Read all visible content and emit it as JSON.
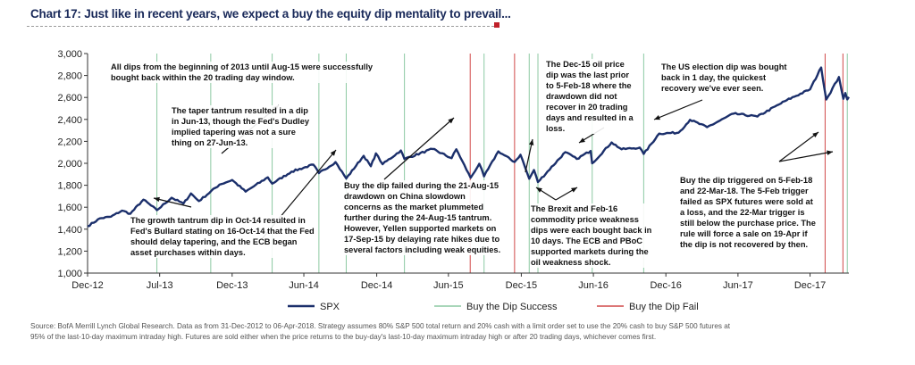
{
  "title": "Chart 17: Just like in recent years, we expect a buy the equity dip mentality to prevail...",
  "chart_data": {
    "type": "line",
    "ylim": [
      1000,
      3000
    ],
    "y_ticks": [
      "1,000",
      "1,200",
      "1,400",
      "1,600",
      "1,800",
      "2,000",
      "2,200",
      "2,400",
      "2,600",
      "2,800",
      "3,000"
    ],
    "y_tick_values": [
      1000,
      1200,
      1400,
      1600,
      1800,
      2000,
      2200,
      2400,
      2600,
      2800,
      3000
    ],
    "xlim": [
      "2012-12-31",
      "2018-04-06"
    ],
    "x_ticks": [
      "Dec-12",
      "Jul-13",
      "Dec-13",
      "Jun-14",
      "Dec-14",
      "Jun-15",
      "Dec-15",
      "Jun-16",
      "Dec-16",
      "Jun-17",
      "Dec-17"
    ],
    "x_tick_dates": [
      "2012-12-31",
      "2013-07-01",
      "2013-12-31",
      "2014-06-30",
      "2014-12-31",
      "2015-06-30",
      "2015-12-31",
      "2016-06-30",
      "2016-12-30",
      "2017-06-30",
      "2017-12-29"
    ],
    "grid": false,
    "legend_position": "bottom",
    "series": [
      {
        "name": "SPX",
        "color": "#1b2f6b",
        "points": [
          [
            "2012-12-31",
            1426
          ],
          [
            "2013-01-31",
            1498
          ],
          [
            "2013-02-28",
            1514
          ],
          [
            "2013-03-28",
            1569
          ],
          [
            "2013-04-18",
            1541
          ],
          [
            "2013-05-21",
            1669
          ],
          [
            "2013-06-24",
            1573
          ],
          [
            "2013-07-31",
            1686
          ],
          [
            "2013-08-30",
            1633
          ],
          [
            "2013-09-18",
            1725
          ],
          [
            "2013-10-08",
            1656
          ],
          [
            "2013-11-29",
            1806
          ],
          [
            "2013-12-31",
            1848
          ],
          [
            "2014-02-03",
            1742
          ],
          [
            "2014-03-31",
            1872
          ],
          [
            "2014-04-11",
            1815
          ],
          [
            "2014-05-30",
            1924
          ],
          [
            "2014-07-24",
            1988
          ],
          [
            "2014-08-07",
            1910
          ],
          [
            "2014-09-18",
            2011
          ],
          [
            "2014-10-15",
            1862
          ],
          [
            "2014-11-28",
            2068
          ],
          [
            "2014-12-16",
            1973
          ],
          [
            "2014-12-29",
            2090
          ],
          [
            "2015-01-15",
            1992
          ],
          [
            "2015-03-02",
            2117
          ],
          [
            "2015-03-11",
            2040
          ],
          [
            "2015-05-21",
            2131
          ],
          [
            "2015-07-08",
            2046
          ],
          [
            "2015-07-20",
            2128
          ],
          [
            "2015-08-25",
            1868
          ],
          [
            "2015-09-16",
            1996
          ],
          [
            "2015-09-28",
            1881
          ],
          [
            "2015-11-03",
            2109
          ],
          [
            "2015-12-14",
            2012
          ],
          [
            "2015-12-29",
            2078
          ],
          [
            "2016-01-20",
            1859
          ],
          [
            "2016-02-01",
            1939
          ],
          [
            "2016-02-11",
            1829
          ],
          [
            "2016-04-20",
            2102
          ],
          [
            "2016-05-19",
            2040
          ],
          [
            "2016-06-23",
            2113
          ],
          [
            "2016-06-27",
            2000
          ],
          [
            "2016-08-15",
            2190
          ],
          [
            "2016-09-09",
            2128
          ],
          [
            "2016-10-25",
            2143
          ],
          [
            "2016-11-04",
            2085
          ],
          [
            "2016-12-13",
            2271
          ],
          [
            "2017-01-31",
            2279
          ],
          [
            "2017-03-01",
            2396
          ],
          [
            "2017-04-13",
            2329
          ],
          [
            "2017-06-19",
            2453
          ],
          [
            "2017-08-18",
            2426
          ],
          [
            "2017-10-31",
            2575
          ],
          [
            "2017-12-29",
            2674
          ],
          [
            "2018-01-26",
            2873
          ],
          [
            "2018-02-08",
            2581
          ],
          [
            "2018-03-12",
            2786
          ],
          [
            "2018-03-23",
            2588
          ],
          [
            "2018-03-28",
            2641
          ],
          [
            "2018-04-02",
            2582
          ],
          [
            "2018-04-06",
            2604
          ]
        ]
      },
      {
        "name": "Buy the Dip Success",
        "color": "#8cc9a2",
        "dates": [
          "2013-06-24",
          "2013-11-07",
          "2014-04-11",
          "2014-08-07",
          "2014-10-15",
          "2015-03-11",
          "2015-09-28",
          "2016-01-20",
          "2016-02-11",
          "2016-06-27",
          "2016-11-04",
          "2018-04-02"
        ]
      },
      {
        "name": "Buy the Dip Fail",
        "color": "#d04848",
        "dates": [
          "2015-08-24",
          "2015-12-14",
          "2018-02-05",
          "2018-03-22"
        ]
      }
    ],
    "legend": [
      "SPX",
      "Buy the Dip Success",
      "Buy the Dip Fail"
    ]
  },
  "annotations": {
    "a1": [
      "All dips from the beginning of 2013 until Aug-15 were successfully",
      "bought back within the 20 trading day window."
    ],
    "a2": [
      "The taper tantrum resulted in a dip",
      "in Jun-13, though the Fed's Dudley",
      "implied tapering was not a sure",
      "thing on 27-Jun-13."
    ],
    "a3": [
      "The growth tantrum dip in Oct-14 resulted in",
      "Fed's Bullard stating on 16-Oct-14 that the Fed",
      "should delay tapering, and the ECB began",
      "asset purchases within days."
    ],
    "a4": [
      "Buy the dip failed during the 21-Aug-15",
      "drawdown on China slowdown",
      "concerns as the market plummeted",
      "further during the 24-Aug-15 tantrum.",
      "However, Yellen supported markets on",
      "17-Sep-15 by delaying rate hikes due to",
      "several factors including weak equities."
    ],
    "a5": [
      "The Dec-15 oil price",
      "dip was the last prior",
      "to 5-Feb-18 where the",
      "drawdown did not",
      "recover in 20 trading",
      "days and resulted in a",
      "loss."
    ],
    "a6": [
      "The Brexit and Feb-16",
      "commodity price weakness",
      "dips were each bought back in",
      "10 days. The ECB and PBoC",
      "supported markets during the",
      "oil weakness shock."
    ],
    "a7": [
      "The US election dip was bought",
      "back in 1 day, the quickest",
      "recovery we've ever seen."
    ],
    "a8": [
      "Buy the dip triggered on 5-Feb-18",
      "and 22-Mar-18. The 5-Feb trigger",
      "failed as SPX futures were sold at",
      "a loss, and the 22-Mar trigger is",
      "still below the purchase price. The",
      "rule will force a sale on 19-Apr if",
      "the dip is not recovered by then."
    ]
  },
  "source": [
    "Source: BofA Merrill Lynch Global Research. Data as from 31-Dec-2012 to 06-Apr-2018. Strategy assumes 80% S&P 500 total return and 20% cash with a limit order set to use the 20% cash to buy S&P 500 futures at",
    "95% of the last-10-day maximum intraday high. Futures are sold either when the price returns to the buy-day's last-10-day maximum intraday high or after 20 trading days, whichever comes first."
  ]
}
